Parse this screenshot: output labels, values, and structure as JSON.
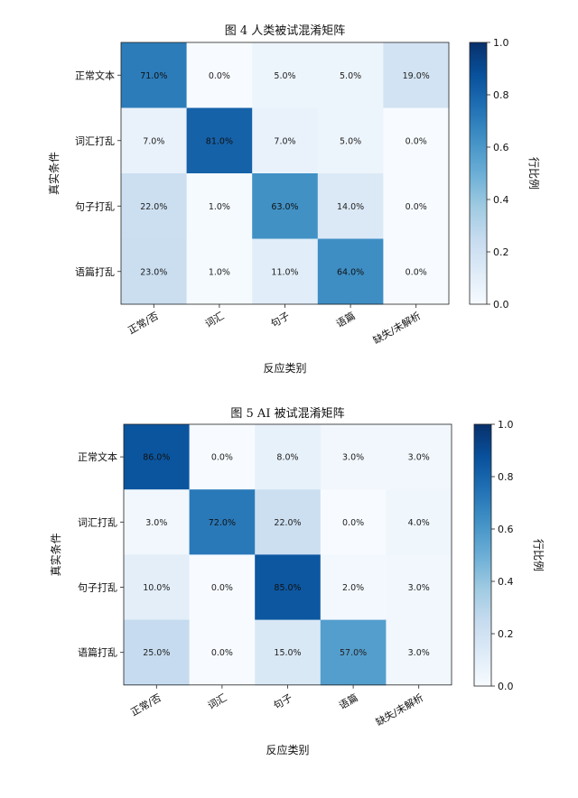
{
  "chart_data": [
    {
      "type": "heatmap",
      "title": "图 4  人类被试混淆矩阵",
      "xlabel": "反应类别",
      "ylabel": "真实条件",
      "x_categories": [
        "正常/否",
        "词汇",
        "句子",
        "语篇",
        "缺失/未解析"
      ],
      "y_categories": [
        "正常文本",
        "词汇打乱",
        "句子打乱",
        "语篇打乱"
      ],
      "values": [
        [
          0.71,
          0.0,
          0.05,
          0.05,
          0.19
        ],
        [
          0.07,
          0.81,
          0.07,
          0.05,
          0.0
        ],
        [
          0.22,
          0.01,
          0.63,
          0.14,
          0.0
        ],
        [
          0.23,
          0.01,
          0.11,
          0.64,
          0.0
        ]
      ],
      "cell_labels": [
        [
          "71.0%",
          "0.0%",
          "5.0%",
          "5.0%",
          "19.0%"
        ],
        [
          "7.0%",
          "81.0%",
          "7.0%",
          "5.0%",
          "0.0%"
        ],
        [
          "22.0%",
          "1.0%",
          "63.0%",
          "14.0%",
          "0.0%"
        ],
        [
          "23.0%",
          "1.0%",
          "11.0%",
          "64.0%",
          "0.0%"
        ]
      ],
      "colorbar": {
        "label": "行比例",
        "range": [
          0,
          1
        ],
        "ticks": [
          "0.0",
          "0.2",
          "0.4",
          "0.6",
          "0.8",
          "1.0"
        ],
        "colormap": "Blues"
      }
    },
    {
      "type": "heatmap",
      "title": "图 5  AI 被试混淆矩阵",
      "xlabel": "反应类别",
      "ylabel": "真实条件",
      "x_categories": [
        "正常/否",
        "词汇",
        "句子",
        "语篇",
        "缺失/未解析"
      ],
      "y_categories": [
        "正常文本",
        "词汇打乱",
        "句子打乱",
        "语篇打乱"
      ],
      "values": [
        [
          0.86,
          0.0,
          0.08,
          0.03,
          0.03
        ],
        [
          0.03,
          0.72,
          0.22,
          0.0,
          0.04
        ],
        [
          0.1,
          0.0,
          0.85,
          0.02,
          0.03
        ],
        [
          0.25,
          0.0,
          0.15,
          0.57,
          0.03
        ]
      ],
      "cell_labels": [
        [
          "86.0%",
          "0.0%",
          "8.0%",
          "3.0%",
          "3.0%"
        ],
        [
          "3.0%",
          "72.0%",
          "22.0%",
          "0.0%",
          "4.0%"
        ],
        [
          "10.0%",
          "0.0%",
          "85.0%",
          "2.0%",
          "3.0%"
        ],
        [
          "25.0%",
          "0.0%",
          "15.0%",
          "57.0%",
          "3.0%"
        ]
      ],
      "colorbar": {
        "label": "行比例",
        "range": [
          0,
          1
        ],
        "ticks": [
          "0.0",
          "0.2",
          "0.4",
          "0.6",
          "0.8",
          "1.0"
        ],
        "colormap": "Blues"
      }
    }
  ]
}
